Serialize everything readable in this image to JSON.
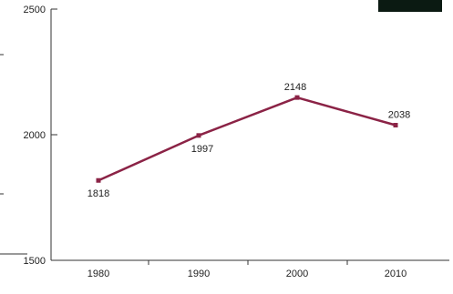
{
  "chart_data": {
    "type": "line",
    "title": "",
    "xlabel": "",
    "ylabel": "",
    "categories": [
      "1980",
      "1990",
      "2000",
      "2010"
    ],
    "series": [
      {
        "values": [
          1818,
          1997,
          2148,
          2038
        ]
      }
    ],
    "data_labels": [
      "1818",
      "1997",
      "2148",
      "2038"
    ],
    "ylim": [
      1500,
      2500
    ],
    "y_ticks": [
      1500,
      2000,
      2500
    ],
    "y_tick_labels": [
      "1500",
      "2000",
      "2500"
    ],
    "grid": false,
    "legend": "none",
    "colors": {
      "series": "#8b2346",
      "axis": "#333333",
      "text": "#222222"
    }
  }
}
